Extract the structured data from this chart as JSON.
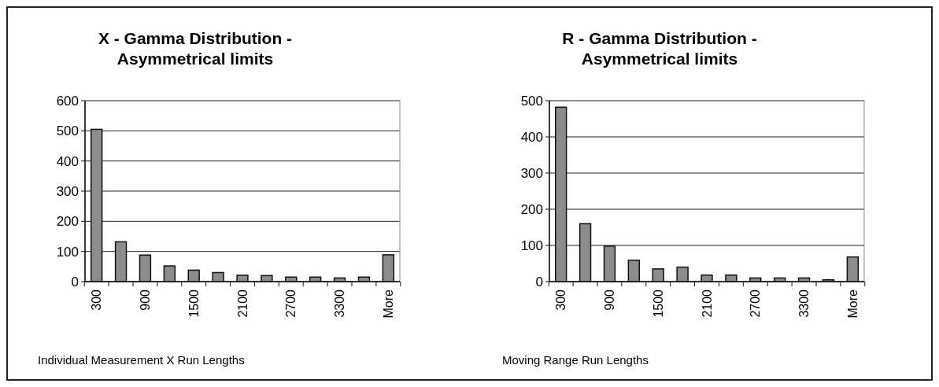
{
  "chart_data": [
    {
      "type": "bar",
      "title": "X - Gamma Distribution - Asymmetrical limits",
      "xlabel": "Individual Measurement X Run Lengths",
      "categories": [
        "300",
        null,
        "900",
        null,
        "1500",
        null,
        "2100",
        null,
        "2700",
        null,
        "3300",
        null,
        "More"
      ],
      "values": [
        505,
        132,
        88,
        52,
        38,
        30,
        21,
        20,
        15,
        15,
        12,
        15,
        89
      ],
      "color": "#8c8c8c",
      "ylim": [
        0,
        600
      ],
      "yticks": [
        0,
        100,
        200,
        300,
        400,
        500,
        600
      ],
      "grid": "y"
    },
    {
      "type": "bar",
      "title": "R - Gamma Distribution - Asymmetrical limits",
      "xlabel": "Moving Range Run Lengths",
      "categories": [
        "300",
        null,
        "900",
        null,
        "1500",
        null,
        "2100",
        null,
        "2700",
        null,
        "3300",
        null,
        "More"
      ],
      "values": [
        482,
        160,
        98,
        59,
        35,
        40,
        18,
        18,
        10,
        10,
        10,
        5,
        68
      ],
      "color": "#8c8c8c",
      "ylim": [
        0,
        500
      ],
      "yticks": [
        0,
        100,
        200,
        300,
        400,
        500
      ],
      "grid": "y"
    }
  ]
}
